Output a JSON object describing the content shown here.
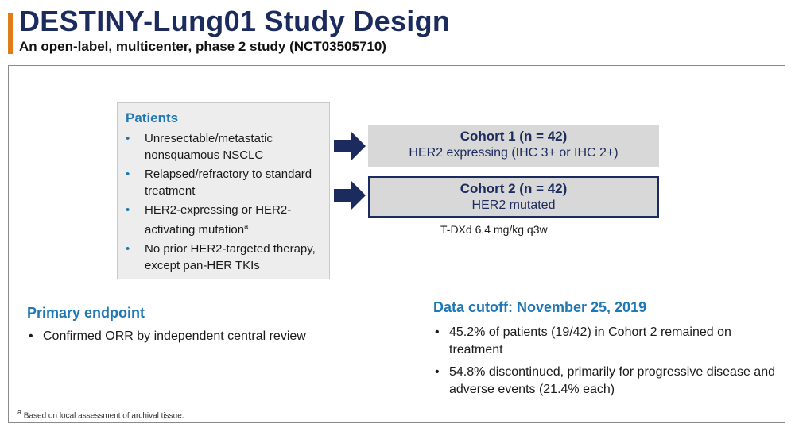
{
  "header": {
    "title": "DESTINY-Lung01 Study Design",
    "subtitle": "An open-label, multicenter, phase 2 study (NCT03505710)"
  },
  "patients": {
    "title": "Patients",
    "items": [
      {
        "text": "Unresectable/metastatic nonsquamous NSCLC"
      },
      {
        "text": "Relapsed/refractory to standard treatment"
      },
      {
        "text": "HER2-expressing or HER2-activating mutation",
        "sup": "a"
      },
      {
        "text": "No prior HER2-targeted therapy, except pan-HER TKIs"
      }
    ],
    "bullet": "•"
  },
  "cohorts": [
    {
      "title": "Cohort 1 (n = 42)",
      "description": "HER2 expressing (IHC 3+ or IHC 2+)"
    },
    {
      "title": "Cohort 2 (n = 42)",
      "description": "HER2 mutated"
    }
  ],
  "dose": "T-DXd 6.4 mg/kg q3w",
  "primary_endpoint": {
    "title": "Primary endpoint",
    "items": [
      "Confirmed ORR by independent central review"
    ]
  },
  "data_cutoff": {
    "title": "Data cutoff: November 25, 2019",
    "items": [
      "45.2% of patients (19/42) in Cohort 2 remained on treatment",
      "54.8% discontinued, primarily for progressive disease and adverse events (21.4% each)"
    ]
  },
  "footnote": {
    "marker": "a",
    "text": " Based on local assessment of archival tissue."
  },
  "colors": {
    "title_navy": "#1c2b5e",
    "accent_orange": "#e07c1a",
    "heading_blue": "#1f77b4",
    "box_gray": "#ededed",
    "cohort_gray": "#d8d8d8"
  },
  "icons": {
    "arrow": "arrow-right-icon"
  }
}
